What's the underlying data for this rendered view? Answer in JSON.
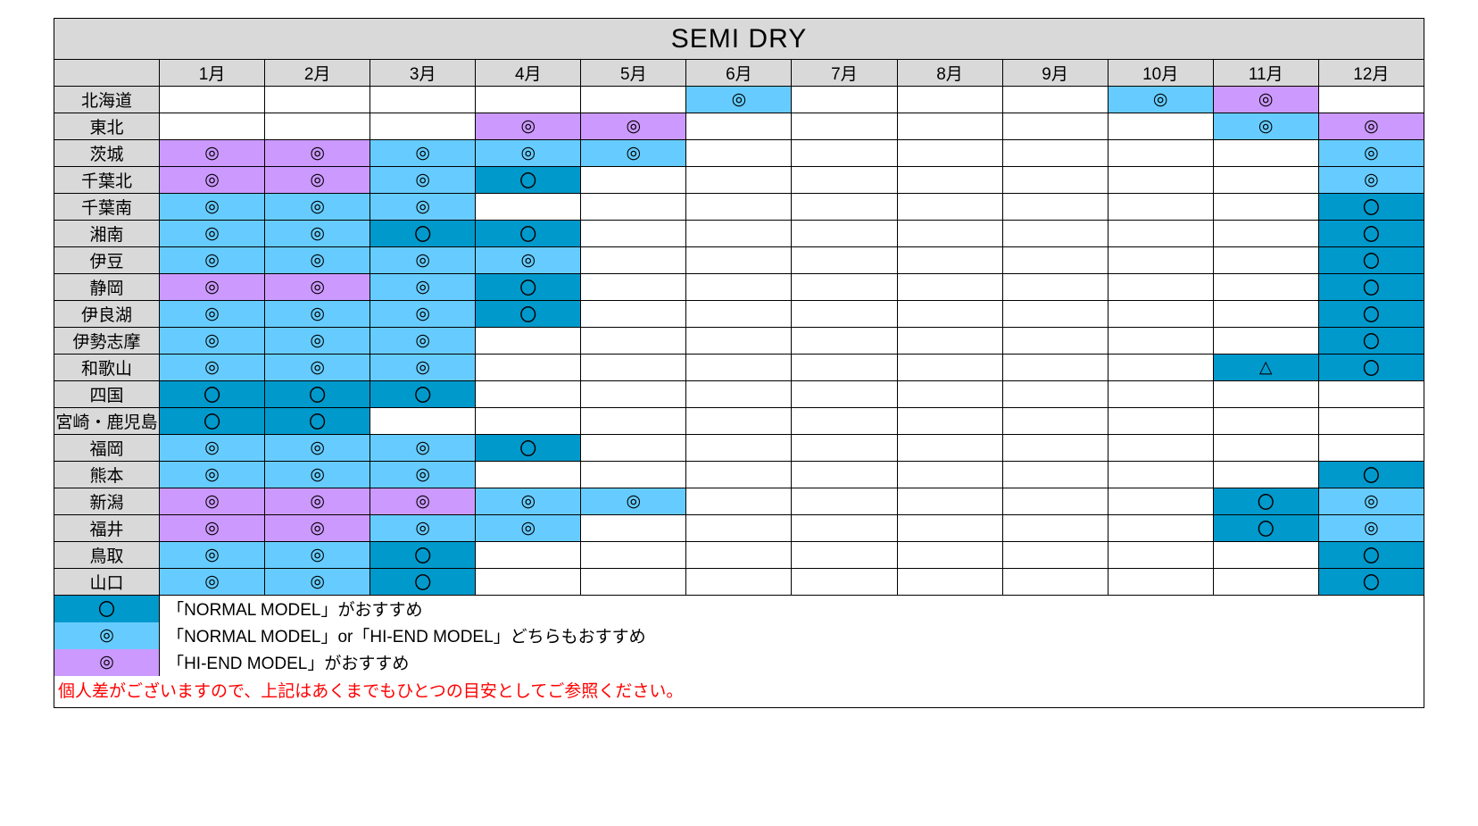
{
  "title": "SEMI DRY",
  "months": [
    "1月",
    "2月",
    "3月",
    "4月",
    "5月",
    "6月",
    "7月",
    "8月",
    "9月",
    "10月",
    "11月",
    "12月"
  ],
  "colors": {
    "header_bg": "#d9d9d9",
    "normal": "#0099cc",
    "either": "#66ccff",
    "hiend": "#cc99ff",
    "empty": "#ffffff"
  },
  "symbols": {
    "dcircle": "◎",
    "circle": "〇",
    "tri": "△"
  },
  "regions": [
    {
      "name": "北海道",
      "cells": [
        null,
        null,
        null,
        null,
        null,
        {
          "c": "either",
          "s": "dcircle"
        },
        null,
        null,
        null,
        {
          "c": "either",
          "s": "dcircle"
        },
        {
          "c": "hiend",
          "s": "dcircle"
        },
        null
      ]
    },
    {
      "name": "東北",
      "cells": [
        null,
        null,
        null,
        {
          "c": "hiend",
          "s": "dcircle"
        },
        {
          "c": "hiend",
          "s": "dcircle"
        },
        null,
        null,
        null,
        null,
        null,
        {
          "c": "either",
          "s": "dcircle"
        },
        {
          "c": "hiend",
          "s": "dcircle"
        }
      ]
    },
    {
      "name": "茨城",
      "cells": [
        {
          "c": "hiend",
          "s": "dcircle"
        },
        {
          "c": "hiend",
          "s": "dcircle"
        },
        {
          "c": "either",
          "s": "dcircle"
        },
        {
          "c": "either",
          "s": "dcircle"
        },
        {
          "c": "either",
          "s": "dcircle"
        },
        null,
        null,
        null,
        null,
        null,
        null,
        {
          "c": "either",
          "s": "dcircle"
        }
      ]
    },
    {
      "name": "千葉北",
      "cells": [
        {
          "c": "hiend",
          "s": "dcircle"
        },
        {
          "c": "hiend",
          "s": "dcircle"
        },
        {
          "c": "either",
          "s": "dcircle"
        },
        {
          "c": "normal",
          "s": "circle"
        },
        null,
        null,
        null,
        null,
        null,
        null,
        null,
        {
          "c": "either",
          "s": "dcircle"
        }
      ]
    },
    {
      "name": "千葉南",
      "cells": [
        {
          "c": "either",
          "s": "dcircle"
        },
        {
          "c": "either",
          "s": "dcircle"
        },
        {
          "c": "either",
          "s": "dcircle"
        },
        null,
        null,
        null,
        null,
        null,
        null,
        null,
        null,
        {
          "c": "normal",
          "s": "circle"
        }
      ]
    },
    {
      "name": "湘南",
      "cells": [
        {
          "c": "either",
          "s": "dcircle"
        },
        {
          "c": "either",
          "s": "dcircle"
        },
        {
          "c": "normal",
          "s": "circle"
        },
        {
          "c": "normal",
          "s": "circle"
        },
        null,
        null,
        null,
        null,
        null,
        null,
        null,
        {
          "c": "normal",
          "s": "circle"
        }
      ]
    },
    {
      "name": "伊豆",
      "cells": [
        {
          "c": "either",
          "s": "dcircle"
        },
        {
          "c": "either",
          "s": "dcircle"
        },
        {
          "c": "either",
          "s": "dcircle"
        },
        {
          "c": "either",
          "s": "dcircle"
        },
        null,
        null,
        null,
        null,
        null,
        null,
        null,
        {
          "c": "normal",
          "s": "circle"
        }
      ]
    },
    {
      "name": "静岡",
      "cells": [
        {
          "c": "hiend",
          "s": "dcircle"
        },
        {
          "c": "hiend",
          "s": "dcircle"
        },
        {
          "c": "either",
          "s": "dcircle"
        },
        {
          "c": "normal",
          "s": "circle"
        },
        null,
        null,
        null,
        null,
        null,
        null,
        null,
        {
          "c": "normal",
          "s": "circle"
        }
      ]
    },
    {
      "name": "伊良湖",
      "cells": [
        {
          "c": "either",
          "s": "dcircle"
        },
        {
          "c": "either",
          "s": "dcircle"
        },
        {
          "c": "either",
          "s": "dcircle"
        },
        {
          "c": "normal",
          "s": "circle"
        },
        null,
        null,
        null,
        null,
        null,
        null,
        null,
        {
          "c": "normal",
          "s": "circle"
        }
      ]
    },
    {
      "name": "伊勢志摩",
      "cells": [
        {
          "c": "either",
          "s": "dcircle"
        },
        {
          "c": "either",
          "s": "dcircle"
        },
        {
          "c": "either",
          "s": "dcircle"
        },
        null,
        null,
        null,
        null,
        null,
        null,
        null,
        null,
        {
          "c": "normal",
          "s": "circle"
        }
      ]
    },
    {
      "name": "和歌山",
      "cells": [
        {
          "c": "either",
          "s": "dcircle"
        },
        {
          "c": "either",
          "s": "dcircle"
        },
        {
          "c": "either",
          "s": "dcircle"
        },
        null,
        null,
        null,
        null,
        null,
        null,
        null,
        {
          "c": "normal",
          "s": "tri"
        },
        {
          "c": "normal",
          "s": "circle"
        }
      ]
    },
    {
      "name": "四国",
      "cells": [
        {
          "c": "normal",
          "s": "circle"
        },
        {
          "c": "normal",
          "s": "circle"
        },
        {
          "c": "normal",
          "s": "circle"
        },
        null,
        null,
        null,
        null,
        null,
        null,
        null,
        null,
        null
      ]
    },
    {
      "name": "宮崎・鹿児島",
      "cells": [
        {
          "c": "normal",
          "s": "circle"
        },
        {
          "c": "normal",
          "s": "circle"
        },
        null,
        null,
        null,
        null,
        null,
        null,
        null,
        null,
        null,
        null
      ]
    },
    {
      "name": "福岡",
      "cells": [
        {
          "c": "either",
          "s": "dcircle"
        },
        {
          "c": "either",
          "s": "dcircle"
        },
        {
          "c": "either",
          "s": "dcircle"
        },
        {
          "c": "normal",
          "s": "circle"
        },
        null,
        null,
        null,
        null,
        null,
        null,
        null,
        null
      ]
    },
    {
      "name": "熊本",
      "cells": [
        {
          "c": "either",
          "s": "dcircle"
        },
        {
          "c": "either",
          "s": "dcircle"
        },
        {
          "c": "either",
          "s": "dcircle"
        },
        null,
        null,
        null,
        null,
        null,
        null,
        null,
        null,
        {
          "c": "normal",
          "s": "circle"
        }
      ]
    },
    {
      "name": "新潟",
      "cells": [
        {
          "c": "hiend",
          "s": "dcircle"
        },
        {
          "c": "hiend",
          "s": "dcircle"
        },
        {
          "c": "hiend",
          "s": "dcircle"
        },
        {
          "c": "either",
          "s": "dcircle"
        },
        {
          "c": "either",
          "s": "dcircle"
        },
        null,
        null,
        null,
        null,
        null,
        {
          "c": "normal",
          "s": "circle"
        },
        {
          "c": "either",
          "s": "dcircle"
        }
      ]
    },
    {
      "name": "福井",
      "cells": [
        {
          "c": "hiend",
          "s": "dcircle"
        },
        {
          "c": "hiend",
          "s": "dcircle"
        },
        {
          "c": "either",
          "s": "dcircle"
        },
        {
          "c": "either",
          "s": "dcircle"
        },
        null,
        null,
        null,
        null,
        null,
        null,
        {
          "c": "normal",
          "s": "circle"
        },
        {
          "c": "either",
          "s": "dcircle"
        }
      ]
    },
    {
      "name": "鳥取",
      "cells": [
        {
          "c": "either",
          "s": "dcircle"
        },
        {
          "c": "either",
          "s": "dcircle"
        },
        {
          "c": "normal",
          "s": "circle"
        },
        null,
        null,
        null,
        null,
        null,
        null,
        null,
        null,
        {
          "c": "normal",
          "s": "circle"
        }
      ]
    },
    {
      "name": "山口",
      "cells": [
        {
          "c": "either",
          "s": "dcircle"
        },
        {
          "c": "either",
          "s": "dcircle"
        },
        {
          "c": "normal",
          "s": "circle"
        },
        null,
        null,
        null,
        null,
        null,
        null,
        null,
        null,
        {
          "c": "normal",
          "s": "circle"
        }
      ]
    }
  ],
  "legend": [
    {
      "c": "normal",
      "s": "circle",
      "text": "「NORMAL MODEL」がおすすめ"
    },
    {
      "c": "either",
      "s": "dcircle",
      "text": "「NORMAL MODEL」or「HI-END MODEL」どちらもおすすめ"
    },
    {
      "c": "hiend",
      "s": "dcircle",
      "text": "「HI-END MODEL」がおすすめ"
    }
  ],
  "note": "個人差がございますので、上記はあくまでもひとつの目安としてご参照ください。"
}
